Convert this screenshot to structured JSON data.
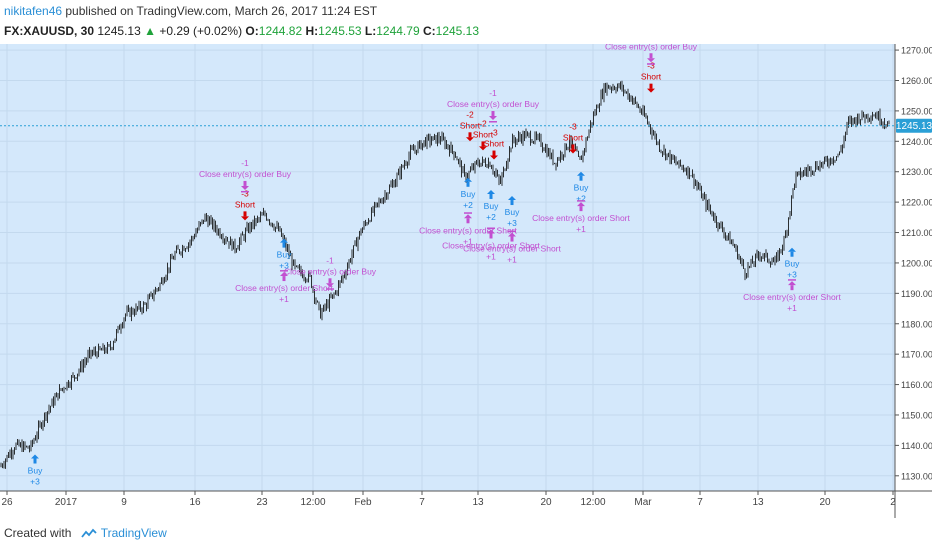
{
  "header": {
    "user": "nikitafen46",
    "published_text": " published on TradingView.com, March 26, 2017 11:24 EST",
    "symbol": "FX:XAUUSD, 30",
    "last": "1245.13",
    "change_arrow": "▲",
    "change": "+0.29 (+0.02%)",
    "open_label": "O:",
    "open": "1244.82",
    "high_label": "H:",
    "high": "1245.53",
    "low_label": "L:",
    "low": "1244.79",
    "close_label": "C:",
    "close": "1245.13"
  },
  "footer": {
    "created_with": "Created with",
    "brand": "TradingView"
  },
  "colors": {
    "plot_bg": "#d4e8fb",
    "price_line": "#2a9fd6",
    "buy": "#1e88e5",
    "short": "#d50000",
    "close_signal": "#c24fd0",
    "candle": "#000000"
  },
  "chart_data": {
    "type": "line",
    "ylim": [
      1125,
      1272
    ],
    "x_tick_labels": [
      "26",
      "2017",
      "9",
      "16",
      "23",
      "12:00",
      "Feb",
      "7",
      "13",
      "20",
      "12:00",
      "Mar",
      "7",
      "13",
      "20",
      "2"
    ],
    "y_tick_labels": [
      "1270.00",
      "1260.00",
      "1250.00",
      "1240.00",
      "1230.00",
      "1220.00",
      "1210.00",
      "1200.00",
      "1190.00",
      "1180.00",
      "1170.00",
      "1160.00",
      "1150.00",
      "1140.00",
      "1130.00"
    ],
    "y_ticks": [
      1270,
      1260,
      1250,
      1240,
      1230,
      1220,
      1210,
      1200,
      1190,
      1180,
      1170,
      1160,
      1150,
      1140,
      1130
    ],
    "current_price": 1245.13,
    "current_price_label": "1245.13",
    "price_path": [
      [
        0,
        1133
      ],
      [
        15,
        1140
      ],
      [
        30,
        1139
      ],
      [
        45,
        1150
      ],
      [
        60,
        1158
      ],
      [
        75,
        1163
      ],
      [
        90,
        1170
      ],
      [
        110,
        1172
      ],
      [
        125,
        1183
      ],
      [
        145,
        1186
      ],
      [
        160,
        1193
      ],
      [
        175,
        1203
      ],
      [
        190,
        1207
      ],
      [
        205,
        1215
      ],
      [
        220,
        1210
      ],
      [
        235,
        1205
      ],
      [
        250,
        1212
      ],
      [
        265,
        1216
      ],
      [
        280,
        1210
      ],
      [
        295,
        1198
      ],
      [
        310,
        1195
      ],
      [
        320,
        1183
      ],
      [
        335,
        1190
      ],
      [
        345,
        1197
      ],
      [
        360,
        1210
      ],
      [
        375,
        1218
      ],
      [
        395,
        1227
      ],
      [
        410,
        1236
      ],
      [
        425,
        1240
      ],
      [
        440,
        1241
      ],
      [
        455,
        1236
      ],
      [
        465,
        1228
      ],
      [
        478,
        1233
      ],
      [
        490,
        1233
      ],
      [
        500,
        1226
      ],
      [
        512,
        1240
      ],
      [
        525,
        1242
      ],
      [
        540,
        1240
      ],
      [
        555,
        1233
      ],
      [
        570,
        1240
      ],
      [
        580,
        1233
      ],
      [
        592,
        1247
      ],
      [
        605,
        1258
      ],
      [
        620,
        1258
      ],
      [
        632,
        1254
      ],
      [
        645,
        1248
      ],
      [
        660,
        1238
      ],
      [
        675,
        1233
      ],
      [
        690,
        1230
      ],
      [
        705,
        1220
      ],
      [
        720,
        1212
      ],
      [
        735,
        1205
      ],
      [
        745,
        1197
      ],
      [
        760,
        1203
      ],
      [
        775,
        1200
      ],
      [
        785,
        1208
      ],
      [
        795,
        1228
      ],
      [
        810,
        1231
      ],
      [
        825,
        1233
      ],
      [
        840,
        1236
      ],
      [
        848,
        1246
      ],
      [
        860,
        1248
      ],
      [
        875,
        1249
      ],
      [
        890,
        1245
      ]
    ],
    "signals": [
      {
        "kind": "buy",
        "x": 35,
        "y": 1137,
        "lines": [
          "Buy",
          "+3"
        ]
      },
      {
        "kind": "short",
        "x": 245,
        "y": 1214,
        "lines": [
          "-3",
          "Short"
        ]
      },
      {
        "kind": "close_long",
        "x": 245,
        "y": 1224,
        "lines": [
          "-1",
          "Close entry(s) order Buy"
        ]
      },
      {
        "kind": "buy",
        "x": 284,
        "y": 1208,
        "lines": [
          "Buy",
          "+3"
        ]
      },
      {
        "kind": "close_short",
        "x": 284,
        "y": 1197,
        "lines": [
          "Close entry(s) order Short",
          "+1"
        ]
      },
      {
        "kind": "close_long",
        "x": 330,
        "y": 1192,
        "lines": [
          "-1",
          "Close entry(s) order Buy"
        ]
      },
      {
        "kind": "close_long",
        "x": 493,
        "y": 1247,
        "lines": [
          "-1",
          "Close entry(s) order Buy"
        ]
      },
      {
        "kind": "short",
        "x": 470,
        "y": 1240,
        "lines": [
          "-2",
          "Short"
        ]
      },
      {
        "kind": "short",
        "x": 483,
        "y": 1237,
        "lines": [
          "-2",
          "Short"
        ]
      },
      {
        "kind": "short",
        "x": 494,
        "y": 1234,
        "lines": [
          "-3",
          "Short"
        ]
      },
      {
        "kind": "buy",
        "x": 468,
        "y": 1228,
        "lines": [
          "Buy",
          "+2"
        ]
      },
      {
        "kind": "buy",
        "x": 491,
        "y": 1224,
        "lines": [
          "Buy",
          "+2"
        ]
      },
      {
        "kind": "buy",
        "x": 512,
        "y": 1222,
        "lines": [
          "Buy",
          "+3"
        ]
      },
      {
        "kind": "close_short",
        "x": 468,
        "y": 1216,
        "lines": [
          "Close entry(s) order Short",
          "+1"
        ]
      },
      {
        "kind": "close_short",
        "x": 491,
        "y": 1211,
        "lines": [
          "Close entry(s) order Short",
          "+1"
        ]
      },
      {
        "kind": "close_short",
        "x": 512,
        "y": 1210,
        "lines": [
          "Close entry(s) order Short",
          "+1"
        ]
      },
      {
        "kind": "short",
        "x": 573,
        "y": 1236,
        "lines": [
          "-3",
          "Short"
        ]
      },
      {
        "kind": "buy",
        "x": 581,
        "y": 1230,
        "lines": [
          "Buy",
          "+2"
        ]
      },
      {
        "kind": "close_short",
        "x": 581,
        "y": 1220,
        "lines": [
          "Close entry(s) order Short",
          "+1"
        ]
      },
      {
        "kind": "short",
        "x": 651,
        "y": 1256,
        "lines": [
          "-3",
          "Short"
        ]
      },
      {
        "kind": "close_long",
        "x": 651,
        "y": 1266,
        "lines": [
          "Close entry(s) order Buy"
        ]
      },
      {
        "kind": "buy",
        "x": 792,
        "y": 1205,
        "lines": [
          "Buy",
          "+3"
        ]
      },
      {
        "kind": "close_short",
        "x": 792,
        "y": 1194,
        "lines": [
          "Close entry(s) order Short",
          "+1"
        ]
      }
    ]
  }
}
